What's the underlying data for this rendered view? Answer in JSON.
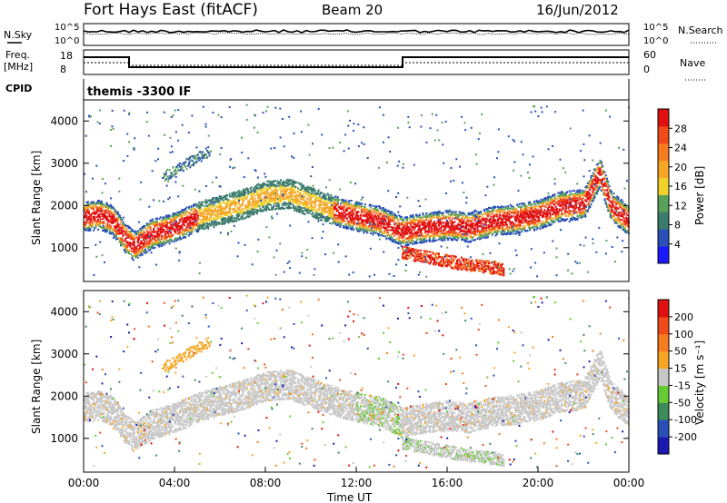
{
  "header": {
    "station": "Fort Hays East (fitACF)",
    "beam": "Beam 20",
    "date": "16/Jun/2012"
  },
  "mini": {
    "nsky_label": "N.Sky",
    "nsearch_label": "N.Search",
    "freq_label_1": "Freq.",
    "freq_label_2": "[MHz]",
    "nave_label": "Nave",
    "cpid_label": "CPID",
    "cpid_text": "themis -3300 IF",
    "noise_ticks": [
      "10^5",
      "10^0"
    ],
    "freq_ticks": [
      "18",
      "8"
    ],
    "nave_ticks": [
      "60",
      "0"
    ]
  },
  "chart_data": [
    {
      "type": "heatmap",
      "panel": "power",
      "ylabel": "Slant Range [km]",
      "xlabel": "",
      "ylim": [
        200,
        4500
      ],
      "y_ticks": [
        "1000",
        "2000",
        "3000",
        "4000"
      ],
      "colorbar": {
        "label": "Power [dB]",
        "ticks": [
          "4",
          "8",
          "12",
          "16",
          "20",
          "24",
          "28"
        ],
        "colors": [
          "#1a1aff",
          "#2a4fb8",
          "#3b7b6b",
          "#59a05a",
          "#f2d12a",
          "#f5a623",
          "#f57c1f",
          "#ef4a17",
          "#e01010"
        ]
      },
      "bands": [
        {
          "name": "main",
          "points": [
            [
              0.0,
              1750
            ],
            [
              0.7,
              1800
            ],
            [
              1.3,
              1650
            ],
            [
              1.8,
              1250
            ],
            [
              2.2,
              1050
            ],
            [
              3.0,
              1350
            ],
            [
              4.0,
              1500
            ],
            [
              5.0,
              1750
            ],
            [
              6.0,
              1900
            ],
            [
              7.0,
              2050
            ],
            [
              8.0,
              2250
            ],
            [
              9.0,
              2300
            ],
            [
              10.0,
              2100
            ],
            [
              11.0,
              1900
            ],
            [
              12.0,
              1750
            ],
            [
              13.0,
              1650
            ],
            [
              14.0,
              1400
            ],
            [
              15.0,
              1500
            ],
            [
              16.0,
              1550
            ],
            [
              17.0,
              1500
            ],
            [
              18.0,
              1650
            ],
            [
              19.0,
              1700
            ],
            [
              20.0,
              1800
            ],
            [
              21.0,
              2000
            ],
            [
              22.0,
              2050
            ],
            [
              22.7,
              2800
            ],
            [
              23.2,
              2000
            ],
            [
              24.0,
              1650
            ]
          ]
        },
        {
          "name": "lower",
          "points": [
            [
              14.0,
              900
            ],
            [
              15.0,
              800
            ],
            [
              16.0,
              700
            ],
            [
              17.0,
              600
            ],
            [
              18.0,
              550
            ],
            [
              18.5,
              500
            ]
          ]
        },
        {
          "name": "upper",
          "points": [
            [
              3.5,
              2700
            ],
            [
              4.5,
              3000
            ],
            [
              5.5,
              3300
            ]
          ]
        }
      ]
    },
    {
      "type": "heatmap",
      "panel": "velocity",
      "ylabel": "Slant Range [km]",
      "xlabel": "Time UT",
      "ylim": [
        200,
        4500
      ],
      "y_ticks": [
        "1000",
        "2000",
        "3000",
        "4000"
      ],
      "x_ticks": [
        "00:00",
        "04:00",
        "08:00",
        "12:00",
        "16:00",
        "20:00",
        "00:00"
      ],
      "colorbar": {
        "label": "Velocity [m s⁻¹]",
        "ticks": [
          "200",
          "100",
          "50",
          "15",
          "-15",
          "-50",
          "-100",
          "-200"
        ],
        "colors": [
          "#1a1ab0",
          "#2a4fb8",
          "#3d8a5a",
          "#66cc33",
          "#c8c8c8",
          "#f5a623",
          "#f57c1f",
          "#ef4a17",
          "#e01010"
        ]
      }
    }
  ]
}
